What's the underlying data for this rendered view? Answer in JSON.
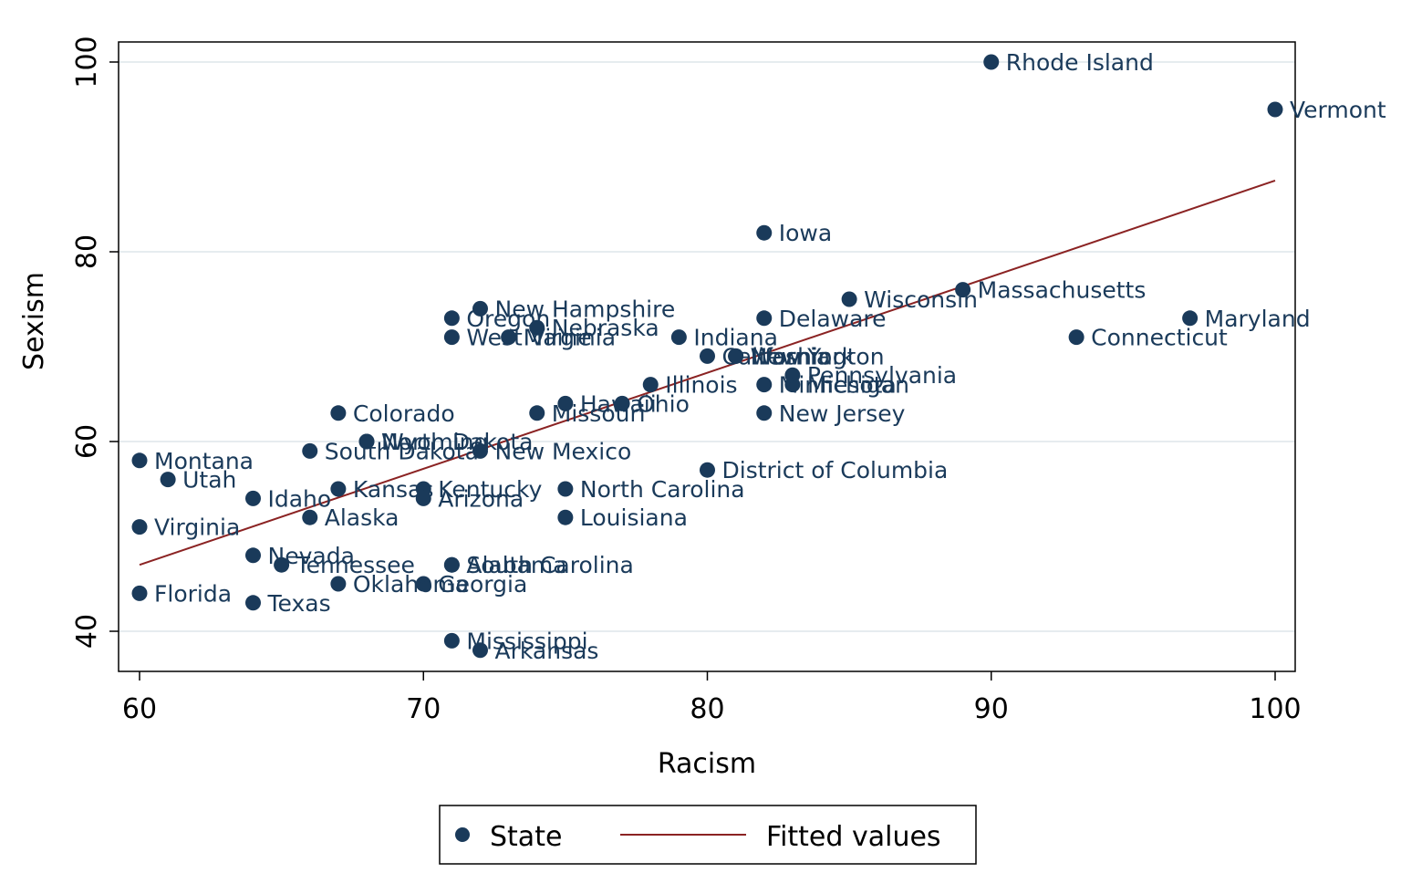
{
  "chart_data": {
    "type": "scatter",
    "xlabel": "Racism",
    "ylabel": "Sexism",
    "xlim": [
      60,
      100
    ],
    "ylim": [
      38,
      102
    ],
    "xticks": [
      "60",
      "70",
      "80",
      "90",
      "100"
    ],
    "yticks": [
      "40",
      "60",
      "80",
      "100"
    ],
    "grid": "horizontal",
    "legend_position": "bottom",
    "legend": {
      "points_label": "State",
      "line_label": "Fitted values"
    },
    "colors": {
      "points": "#1a3a5a",
      "fit": "#8b2323",
      "grid": "#e6ecef",
      "frame": "#000000"
    },
    "fit_line": {
      "x": [
        60,
        100
      ],
      "y": [
        47,
        87.5
      ]
    },
    "series": [
      {
        "points": [
          {
            "label": "Rhode Island",
            "x": 90,
            "y": 100
          },
          {
            "label": "Vermont",
            "x": 100,
            "y": 95
          },
          {
            "label": "Iowa",
            "x": 82,
            "y": 82
          },
          {
            "label": "Massachusetts",
            "x": 89,
            "y": 76
          },
          {
            "label": "Wisconsin",
            "x": 85,
            "y": 75
          },
          {
            "label": "Maryland",
            "x": 97,
            "y": 73
          },
          {
            "label": "Connecticut",
            "x": 93,
            "y": 71
          },
          {
            "label": "Delaware",
            "x": 82,
            "y": 73
          },
          {
            "label": "New Hampshire",
            "x": 72,
            "y": 74
          },
          {
            "label": "Oregon",
            "x": 71,
            "y": 73
          },
          {
            "label": "Nebraska",
            "x": 74,
            "y": 72
          },
          {
            "label": "West Virginia",
            "x": 71,
            "y": 71
          },
          {
            "label": "Maine",
            "x": 73,
            "y": 71
          },
          {
            "label": "Indiana",
            "x": 79,
            "y": 71
          },
          {
            "label": "California",
            "x": 80,
            "y": 69
          },
          {
            "label": "Washington",
            "x": 81,
            "y": 69
          },
          {
            "label": "New York",
            "x": 81,
            "y": 69
          },
          {
            "label": "Pennsylvania",
            "x": 83,
            "y": 67
          },
          {
            "label": "Minnesota",
            "x": 82,
            "y": 66
          },
          {
            "label": "Michigan",
            "x": 83,
            "y": 66
          },
          {
            "label": "Illinois",
            "x": 78,
            "y": 66
          },
          {
            "label": "Hawaii",
            "x": 75,
            "y": 64
          },
          {
            "label": "Ohio",
            "x": 77,
            "y": 64
          },
          {
            "label": "Missouri",
            "x": 74,
            "y": 63
          },
          {
            "label": "Colorado",
            "x": 67,
            "y": 63
          },
          {
            "label": "New Jersey",
            "x": 82,
            "y": 63
          },
          {
            "label": "North Dakota",
            "x": 68,
            "y": 60
          },
          {
            "label": "Wyoming",
            "x": 68,
            "y": 60
          },
          {
            "label": "South Dakota",
            "x": 66,
            "y": 59
          },
          {
            "label": "New Mexico",
            "x": 72,
            "y": 59
          },
          {
            "label": "Montana",
            "x": 60,
            "y": 58
          },
          {
            "label": "District of Columbia",
            "x": 80,
            "y": 57
          },
          {
            "label": "Utah",
            "x": 61,
            "y": 56
          },
          {
            "label": "Kansas",
            "x": 67,
            "y": 55
          },
          {
            "label": "Kentucky",
            "x": 70,
            "y": 55
          },
          {
            "label": "North Carolina",
            "x": 75,
            "y": 55
          },
          {
            "label": "Arizona",
            "x": 70,
            "y": 54
          },
          {
            "label": "Idaho",
            "x": 64,
            "y": 54
          },
          {
            "label": "Alaska",
            "x": 66,
            "y": 52
          },
          {
            "label": "Louisiana",
            "x": 75,
            "y": 52
          },
          {
            "label": "Virginia",
            "x": 60,
            "y": 51
          },
          {
            "label": "Nevada",
            "x": 64,
            "y": 48
          },
          {
            "label": "Tennessee",
            "x": 65,
            "y": 47
          },
          {
            "label": "Alabama",
            "x": 71,
            "y": 47
          },
          {
            "label": "South Carolina",
            "x": 71,
            "y": 47
          },
          {
            "label": "Oklahoma",
            "x": 67,
            "y": 45
          },
          {
            "label": "Georgia",
            "x": 70,
            "y": 45
          },
          {
            "label": "Florida",
            "x": 60,
            "y": 44
          },
          {
            "label": "Texas",
            "x": 64,
            "y": 43
          },
          {
            "label": "Mississippi",
            "x": 71,
            "y": 39
          },
          {
            "label": "Arkansas",
            "x": 72,
            "y": 38
          }
        ]
      }
    ]
  }
}
